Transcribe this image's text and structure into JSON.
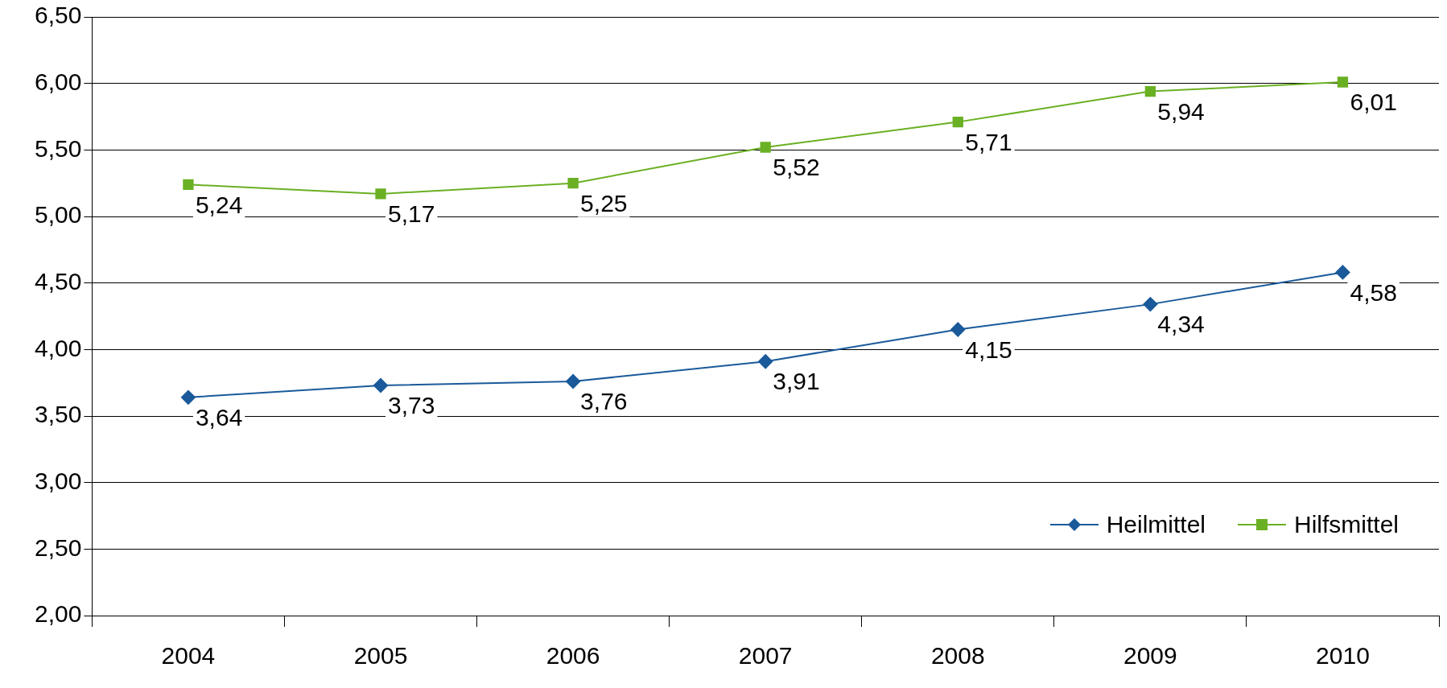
{
  "chart_data": {
    "type": "line",
    "categories": [
      "2004",
      "2005",
      "2006",
      "2007",
      "2008",
      "2009",
      "2010"
    ],
    "series": [
      {
        "name": "Heilmittel",
        "color": "#1a5a9a",
        "marker": "diamond",
        "values": [
          3.64,
          3.73,
          3.76,
          3.91,
          4.15,
          4.34,
          4.58
        ],
        "value_labels": [
          "3,64",
          "3,73",
          "3,76",
          "3,91",
          "4,15",
          "4,34",
          "4,58"
        ]
      },
      {
        "name": "Hilfsmittel",
        "color": "#6ab023",
        "marker": "square",
        "values": [
          5.24,
          5.17,
          5.25,
          5.52,
          5.71,
          5.94,
          6.01
        ],
        "value_labels": [
          "5,24",
          "5,17",
          "5,25",
          "5,52",
          "5,71",
          "5,94",
          "6,01"
        ]
      }
    ],
    "ylim": [
      2,
      6.5
    ],
    "yticks": [
      {
        "value": 2,
        "label": "2,00"
      },
      {
        "value": 2.5,
        "label": "2,50"
      },
      {
        "value": 3,
        "label": "3,00"
      },
      {
        "value": 3.5,
        "label": "3,50"
      },
      {
        "value": 4,
        "label": "4,00"
      },
      {
        "value": 4.5,
        "label": "4,50"
      },
      {
        "value": 5,
        "label": "5,00"
      },
      {
        "value": 5.5,
        "label": "5,50"
      },
      {
        "value": 6,
        "label": "6,00"
      },
      {
        "value": 6.5,
        "label": "6,50"
      }
    ],
    "grid": "y",
    "legend": "bottom right",
    "line_style": "solid"
  }
}
